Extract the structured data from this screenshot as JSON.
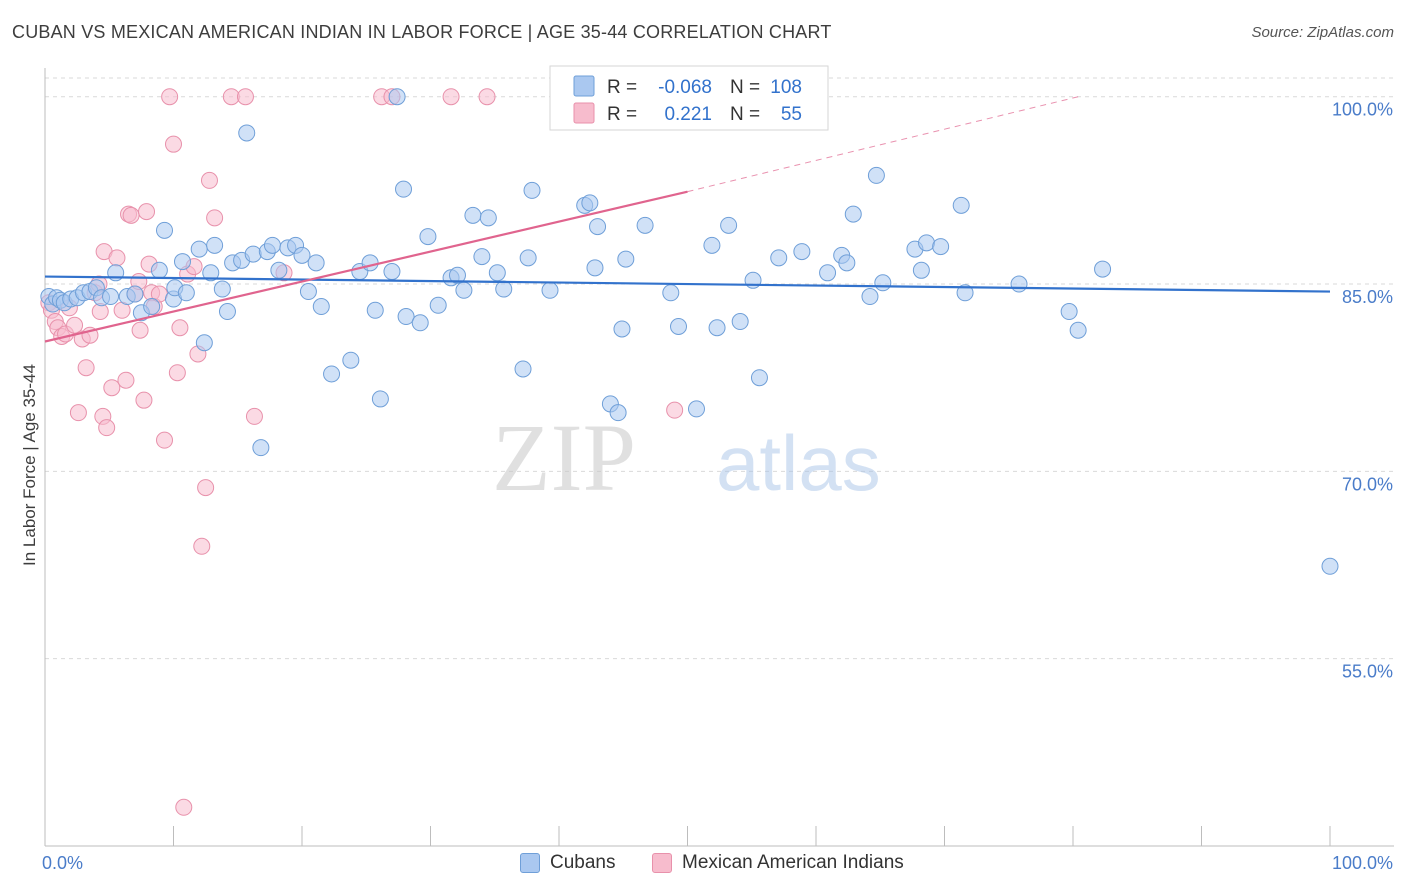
{
  "title": "CUBAN VS MEXICAN AMERICAN INDIAN IN LABOR FORCE | AGE 35-44 CORRELATION CHART",
  "source": "Source: ZipAtlas.com",
  "watermark": {
    "zip": "ZIP",
    "atlas": "atlas"
  },
  "colors": {
    "cubans_fill": "#aac8f0",
    "cubans_stroke": "#6f9fd8",
    "cubans_line": "#3272cc",
    "mexican_fill": "#f7bccd",
    "mexican_stroke": "#e891ab",
    "mexican_line": "#e0648e",
    "tick_text": "#4a7cc9",
    "grid": "#d9d9d9"
  },
  "legend": {
    "rows": [
      {
        "r_label": "R =",
        "r_value": "-0.068",
        "n_label": "N =",
        "n_value": "108"
      },
      {
        "r_label": "R =",
        "r_value": "0.221",
        "n_label": "N =",
        "n_value": "55"
      }
    ]
  },
  "bottom_legend": {
    "cubans": "Cubans",
    "mexican": "Mexican American Indians"
  },
  "chart_data": {
    "type": "scatter",
    "title": "CUBAN VS MEXICAN AMERICAN INDIAN IN LABOR FORCE | AGE 35-44 CORRELATION CHART",
    "xlabel": "",
    "ylabel": "In Labor Force | Age 35-44",
    "xlim": [
      0,
      100
    ],
    "ylim": [
      40,
      101.5
    ],
    "x_tick_labels": [
      "0.0%",
      "100.0%"
    ],
    "y_ticks": [
      55,
      70,
      85,
      100
    ],
    "y_tick_labels": [
      "55.0%",
      "70.0%",
      "85.0%",
      "100.0%"
    ],
    "grid": true,
    "legend_position": "top-center",
    "series": [
      {
        "name": "Cubans",
        "r": -0.068,
        "n": 108,
        "trend": {
          "x": [
            0,
            100
          ],
          "y": [
            85.6,
            84.4
          ]
        },
        "points": [
          [
            0.3,
            84.0
          ],
          [
            0.6,
            83.4
          ],
          [
            0.9,
            83.9
          ],
          [
            1.2,
            83.7
          ],
          [
            1.5,
            83.5
          ],
          [
            2.0,
            83.8
          ],
          [
            2.5,
            83.9
          ],
          [
            3.0,
            84.3
          ],
          [
            3.5,
            84.4
          ],
          [
            4.0,
            84.7
          ],
          [
            4.4,
            83.9
          ],
          [
            5.1,
            84.0
          ],
          [
            5.5,
            85.9
          ],
          [
            6.4,
            84.0
          ],
          [
            7.0,
            84.2
          ],
          [
            7.5,
            82.7
          ],
          [
            8.3,
            83.2
          ],
          [
            8.9,
            86.1
          ],
          [
            9.3,
            89.3
          ],
          [
            10.0,
            83.8
          ],
          [
            10.1,
            84.7
          ],
          [
            10.7,
            86.8
          ],
          [
            11.0,
            84.3
          ],
          [
            12.0,
            87.8
          ],
          [
            12.4,
            80.3
          ],
          [
            12.9,
            85.9
          ],
          [
            13.2,
            88.1
          ],
          [
            13.8,
            84.6
          ],
          [
            14.2,
            82.8
          ],
          [
            14.6,
            86.7
          ],
          [
            15.3,
            86.9
          ],
          [
            15.7,
            97.1
          ],
          [
            16.2,
            87.4
          ],
          [
            16.8,
            71.9
          ],
          [
            17.3,
            87.6
          ],
          [
            17.7,
            88.1
          ],
          [
            18.2,
            86.1
          ],
          [
            18.9,
            87.9
          ],
          [
            19.5,
            88.1
          ],
          [
            20.0,
            87.3
          ],
          [
            20.5,
            84.4
          ],
          [
            21.1,
            86.7
          ],
          [
            21.5,
            83.2
          ],
          [
            22.3,
            77.8
          ],
          [
            23.8,
            78.9
          ],
          [
            24.5,
            86.0
          ],
          [
            25.3,
            86.7
          ],
          [
            25.7,
            82.9
          ],
          [
            26.1,
            75.8
          ],
          [
            27.0,
            86.0
          ],
          [
            27.4,
            100.0
          ],
          [
            27.9,
            92.6
          ],
          [
            28.1,
            82.4
          ],
          [
            29.2,
            81.9
          ],
          [
            29.8,
            88.8
          ],
          [
            30.6,
            83.3
          ],
          [
            31.6,
            85.5
          ],
          [
            32.1,
            85.7
          ],
          [
            32.6,
            84.5
          ],
          [
            33.3,
            90.5
          ],
          [
            34.0,
            87.2
          ],
          [
            34.5,
            90.3
          ],
          [
            35.2,
            85.9
          ],
          [
            35.7,
            84.6
          ],
          [
            37.2,
            78.2
          ],
          [
            37.6,
            87.1
          ],
          [
            37.9,
            92.5
          ],
          [
            39.3,
            84.5
          ],
          [
            42.0,
            91.3
          ],
          [
            42.4,
            91.5
          ],
          [
            42.8,
            86.3
          ],
          [
            43.0,
            89.6
          ],
          [
            44.0,
            75.4
          ],
          [
            44.6,
            74.7
          ],
          [
            44.9,
            81.4
          ],
          [
            45.2,
            87.0
          ],
          [
            46.7,
            89.7
          ],
          [
            48.7,
            84.3
          ],
          [
            49.3,
            81.6
          ],
          [
            50.7,
            75.0
          ],
          [
            51.9,
            88.1
          ],
          [
            52.3,
            81.5
          ],
          [
            53.2,
            89.7
          ],
          [
            54.1,
            82.0
          ],
          [
            55.1,
            85.3
          ],
          [
            55.6,
            77.5
          ],
          [
            57.1,
            87.1
          ],
          [
            58.9,
            87.6
          ],
          [
            60.9,
            85.9
          ],
          [
            62.0,
            87.3
          ],
          [
            62.4,
            86.7
          ],
          [
            62.9,
            90.6
          ],
          [
            64.2,
            84.0
          ],
          [
            64.7,
            93.7
          ],
          [
            65.2,
            85.1
          ],
          [
            67.7,
            87.8
          ],
          [
            68.2,
            86.1
          ],
          [
            68.6,
            88.3
          ],
          [
            69.7,
            88.0
          ],
          [
            71.3,
            91.3
          ],
          [
            71.6,
            84.3
          ],
          [
            75.8,
            85.0
          ],
          [
            79.7,
            82.8
          ],
          [
            80.4,
            81.3
          ],
          [
            82.3,
            86.2
          ],
          [
            100.0,
            62.4
          ]
        ]
      },
      {
        "name": "Mexican American Indians",
        "r": 0.221,
        "n": 55,
        "trend": {
          "x": [
            0,
            50
          ],
          "y": [
            80.4,
            92.4
          ]
        },
        "trend_dashed": {
          "x": [
            50,
            80.4
          ],
          "y": [
            92.4,
            100.0
          ]
        },
        "points": [
          [
            0.3,
            83.5
          ],
          [
            0.5,
            82.9
          ],
          [
            0.8,
            82.0
          ],
          [
            1.0,
            81.5
          ],
          [
            1.3,
            80.8
          ],
          [
            1.6,
            81.0
          ],
          [
            1.9,
            83.1
          ],
          [
            2.3,
            81.7
          ],
          [
            2.6,
            74.7
          ],
          [
            2.9,
            80.6
          ],
          [
            3.2,
            78.3
          ],
          [
            3.5,
            80.9
          ],
          [
            3.9,
            84.3
          ],
          [
            4.2,
            85.0
          ],
          [
            4.3,
            82.8
          ],
          [
            4.5,
            74.4
          ],
          [
            4.6,
            87.6
          ],
          [
            4.8,
            73.5
          ],
          [
            5.2,
            76.7
          ],
          [
            5.6,
            87.1
          ],
          [
            6.0,
            82.9
          ],
          [
            6.3,
            77.3
          ],
          [
            6.5,
            90.6
          ],
          [
            6.7,
            90.5
          ],
          [
            7.0,
            84.2
          ],
          [
            7.3,
            85.2
          ],
          [
            7.4,
            81.3
          ],
          [
            7.7,
            75.7
          ],
          [
            7.9,
            90.8
          ],
          [
            8.1,
            86.6
          ],
          [
            8.3,
            84.3
          ],
          [
            8.5,
            83.2
          ],
          [
            8.9,
            84.2
          ],
          [
            9.3,
            72.5
          ],
          [
            9.7,
            100.0
          ],
          [
            10.0,
            96.2
          ],
          [
            10.3,
            77.9
          ],
          [
            10.5,
            81.5
          ],
          [
            10.8,
            43.1
          ],
          [
            11.1,
            85.8
          ],
          [
            11.6,
            86.4
          ],
          [
            11.9,
            79.4
          ],
          [
            12.2,
            64.0
          ],
          [
            12.5,
            68.7
          ],
          [
            12.8,
            93.3
          ],
          [
            13.2,
            90.3
          ],
          [
            14.5,
            100.0
          ],
          [
            15.6,
            100.0
          ],
          [
            16.3,
            74.4
          ],
          [
            18.6,
            85.9
          ],
          [
            26.2,
            100.0
          ],
          [
            27.0,
            100.0
          ],
          [
            31.6,
            100.0
          ],
          [
            34.4,
            100.0
          ],
          [
            49.0,
            74.9
          ]
        ]
      }
    ]
  }
}
